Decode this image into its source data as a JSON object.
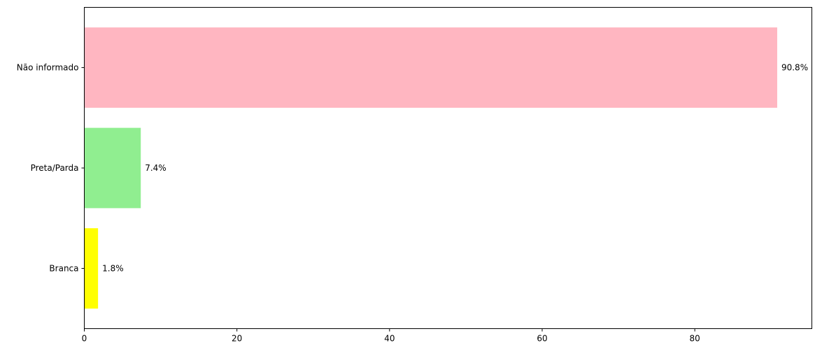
{
  "chart_data": {
    "type": "bar",
    "orientation": "horizontal",
    "categories": [
      "Branca",
      "Preta/Parda",
      "Não informado"
    ],
    "values": [
      1.8,
      7.4,
      90.8
    ],
    "value_labels": [
      "1.8%",
      "7.4%",
      "90.8%"
    ],
    "colors": [
      "#ffff00",
      "#90ee90",
      "#ffb6c1"
    ],
    "title": "",
    "xlabel": "",
    "ylabel": "",
    "xlim": [
      0,
      95.34
    ],
    "xticks": [
      0,
      20,
      40,
      60,
      80
    ],
    "xtick_labels": [
      "0",
      "20",
      "40",
      "60",
      "80"
    ],
    "grid": false,
    "legend": "none"
  }
}
